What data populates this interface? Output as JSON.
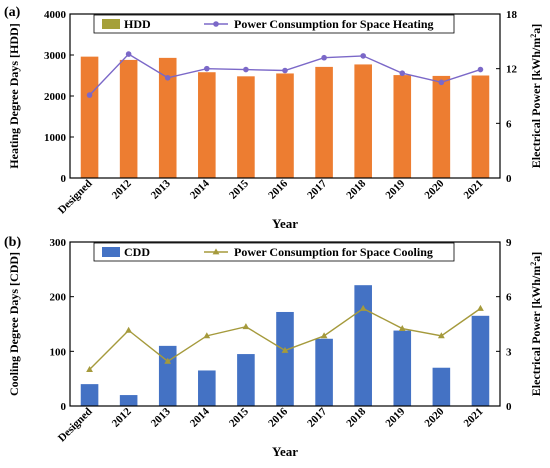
{
  "chart_data": [
    {
      "panel_label": "(a)",
      "type": "bar",
      "categories": [
        "Designed",
        "2012",
        "2013",
        "2014",
        "2015",
        "2016",
        "2017",
        "2018",
        "2019",
        "2020",
        "2021"
      ],
      "xlabel": "Year",
      "ylabel": "Heating Degree Days [HDD]",
      "ylim": [
        0,
        4000
      ],
      "yticks": [
        0,
        1000,
        2000,
        3000,
        4000
      ],
      "y2label": "Electrical Power [kWh/m²a]",
      "y2lim": [
        0,
        18
      ],
      "y2ticks": [
        0,
        6,
        12,
        18
      ],
      "grid": false,
      "legend_position": "top",
      "series": [
        {
          "name": "HDD",
          "kind": "bar",
          "axis": "left",
          "color": "#ed7d31",
          "legend_color": "#a5a03a",
          "values": [
            2960,
            2880,
            2930,
            2580,
            2480,
            2550,
            2710,
            2770,
            2510,
            2490,
            2500
          ]
        },
        {
          "name": "Power Consumption for Space Heating",
          "kind": "line",
          "axis": "right",
          "color": "#7b68c8",
          "values": [
            9.1,
            13.6,
            11.0,
            12.0,
            11.9,
            11.8,
            13.2,
            13.4,
            11.5,
            10.5,
            11.9
          ]
        }
      ]
    },
    {
      "panel_label": "(b)",
      "type": "bar",
      "categories": [
        "Designed",
        "2012",
        "2013",
        "2014",
        "2015",
        "2016",
        "2017",
        "2018",
        "2019",
        "2020",
        "2021"
      ],
      "xlabel": "Year",
      "ylabel": "Cooling Degree Days [CDD]",
      "ylim": [
        0,
        300
      ],
      "yticks": [
        0,
        100,
        200,
        300
      ],
      "y2label": "Electrical Power [kWh/m²a]",
      "y2lim": [
        0,
        9
      ],
      "y2ticks": [
        0,
        3,
        6,
        9
      ],
      "grid": false,
      "legend_position": "top",
      "series": [
        {
          "name": "CDD",
          "kind": "bar",
          "axis": "left",
          "color": "#4472c4",
          "legend_color": "#4472c4",
          "values": [
            40,
            20,
            110,
            65,
            95,
            172,
            123,
            221,
            138,
            70,
            165
          ]
        },
        {
          "name": "Power Consumption for Space Cooling",
          "kind": "line",
          "axis": "right",
          "color": "#a59a3c",
          "values": [
            2.0,
            4.15,
            2.45,
            3.85,
            4.35,
            3.05,
            3.85,
            5.35,
            4.25,
            3.85,
            5.35
          ]
        }
      ]
    }
  ]
}
